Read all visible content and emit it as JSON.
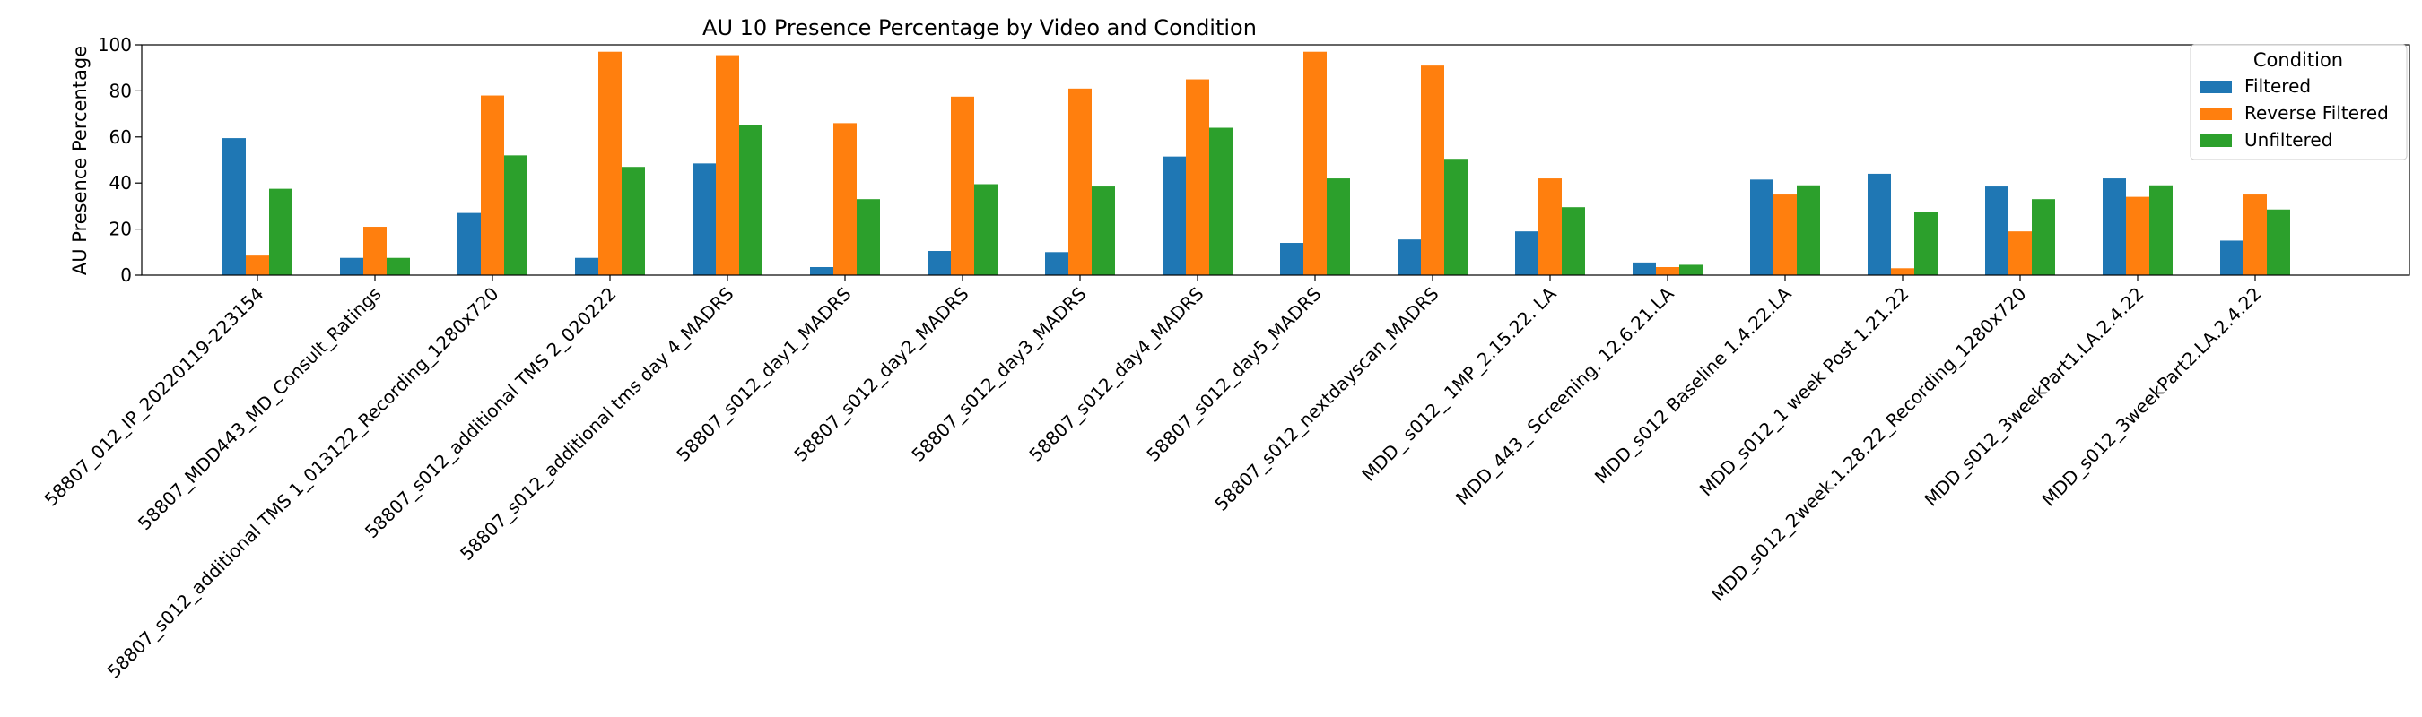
{
  "chart_data": {
    "type": "bar",
    "title": "AU 10 Presence Percentage by Video and Condition",
    "xlabel": "",
    "ylabel": "AU Presence Percentage",
    "ylim": [
      0,
      100
    ],
    "yticks": [
      0,
      20,
      40,
      60,
      80,
      100
    ],
    "grid": false,
    "legend": {
      "title": "Condition",
      "placement": "top-right"
    },
    "categories": [
      "58807_012_IP_20220119-223154",
      "58807_MDD443_MD_Consult_Ratings",
      "58807_s012_additional TMS 1_013122_Recording_1280x720",
      "58807_s012_additional TMS 2_020222",
      "58807_s012_additional tms day 4_MADRS",
      "58807_s012_day1_MADRS",
      "58807_s012_day2_MADRS",
      "58807_s012_day3_MADRS",
      "58807_s012_day4_MADRS",
      "58807_s012_day5_MADRS",
      "58807_s012_nextdayscan_MADRS",
      "MDD_ s012_ 1MP_2.15.22. LA",
      "MDD_443_ Screening. 12.6.21.LA",
      "MDD_s012 Baseline 1.4.22.LA",
      "MDD_s012_1 week Post 1.21.22",
      "MDD_s012_2week.1.28.22_Recording_1280x720",
      "MDD_s012_3weekPart1.LA.2.4.22",
      "MDD_s012_3weekPart2.LA.2.4.22"
    ],
    "series": [
      {
        "name": "Filtered",
        "color": "#1f77b4",
        "values": [
          59.5,
          7.5,
          27,
          7.5,
          48.5,
          3.5,
          10.5,
          10,
          51.5,
          14,
          15.5,
          19,
          5.5,
          41.5,
          44,
          38.5,
          42,
          15
        ]
      },
      {
        "name": "Reverse Filtered",
        "color": "#ff7f0e",
        "values": [
          8.5,
          21,
          78,
          97,
          95.5,
          66,
          77.5,
          81,
          85,
          97,
          91,
          42,
          3.5,
          35,
          3,
          19,
          34,
          35
        ]
      },
      {
        "name": "Unfiltered",
        "color": "#2ca02c",
        "values": [
          37.5,
          7.5,
          52,
          47,
          65,
          33,
          39.5,
          38.5,
          64,
          42,
          50.5,
          29.5,
          4.5,
          39,
          27.5,
          33,
          39,
          28.5
        ]
      }
    ]
  }
}
